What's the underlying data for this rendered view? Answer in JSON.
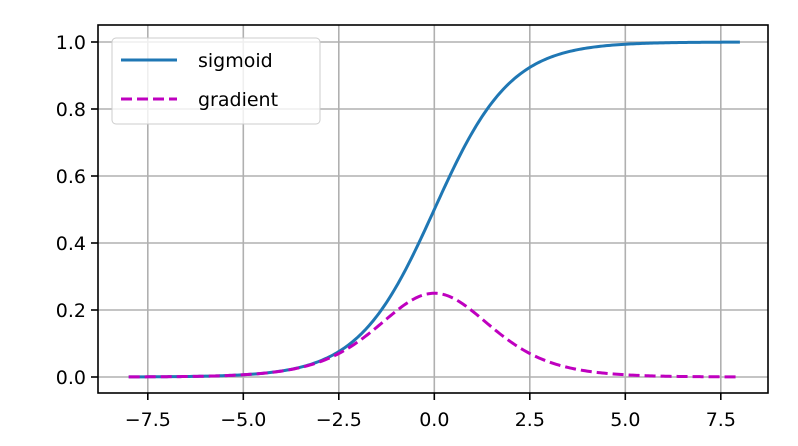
{
  "chart_data": {
    "type": "line",
    "title": "",
    "xlabel": "",
    "ylabel": "",
    "xlim": [
      -8.8,
      8.8
    ],
    "ylim": [
      -0.05,
      1.05
    ],
    "grid": true,
    "legend_position": "upper left",
    "x_ticks": [
      -7.5,
      -5.0,
      -2.5,
      0.0,
      2.5,
      5.0,
      7.5
    ],
    "x_tick_labels": [
      "−7.5",
      "−5.0",
      "−2.5",
      "0.0",
      "2.5",
      "5.0",
      "7.5"
    ],
    "y_ticks": [
      0.0,
      0.2,
      0.4,
      0.6,
      0.8,
      1.0
    ],
    "y_tick_labels": [
      "0.0",
      "0.2",
      "0.4",
      "0.6",
      "0.8",
      "1.0"
    ],
    "x_range": [
      -8.0,
      8.0
    ],
    "series": [
      {
        "name": "sigmoid",
        "style": "solid",
        "color": "#1f77b4",
        "x": [
          -8,
          -7,
          -6,
          -5,
          -4,
          -3,
          -2.5,
          -2,
          -1.5,
          -1,
          -0.5,
          0,
          0.5,
          1,
          1.5,
          2,
          2.5,
          3,
          4,
          5,
          6,
          7,
          8
        ],
        "values": [
          0.0003,
          0.0009,
          0.0025,
          0.0067,
          0.018,
          0.047,
          0.076,
          0.119,
          0.182,
          0.269,
          0.378,
          0.5,
          0.622,
          0.731,
          0.818,
          0.881,
          0.924,
          0.953,
          0.982,
          0.993,
          0.998,
          0.999,
          1.0
        ]
      },
      {
        "name": "gradient",
        "style": "dashed",
        "color": "#bf00bf",
        "x": [
          -8,
          -7,
          -6,
          -5,
          -4,
          -3,
          -2.5,
          -2,
          -1.5,
          -1,
          -0.5,
          0,
          0.5,
          1,
          1.5,
          2,
          2.5,
          3,
          4,
          5,
          6,
          7,
          8
        ],
        "values": [
          0.0003,
          0.0009,
          0.0025,
          0.0066,
          0.0177,
          0.045,
          0.07,
          0.105,
          0.149,
          0.197,
          0.235,
          0.25,
          0.235,
          0.197,
          0.149,
          0.105,
          0.07,
          0.045,
          0.0177,
          0.0066,
          0.0025,
          0.0009,
          0.0003
        ]
      }
    ]
  },
  "legend": {
    "items": [
      {
        "label": "sigmoid",
        "color": "#1f77b4",
        "style": "solid"
      },
      {
        "label": "gradient",
        "color": "#bf00bf",
        "style": "dashed"
      }
    ]
  }
}
